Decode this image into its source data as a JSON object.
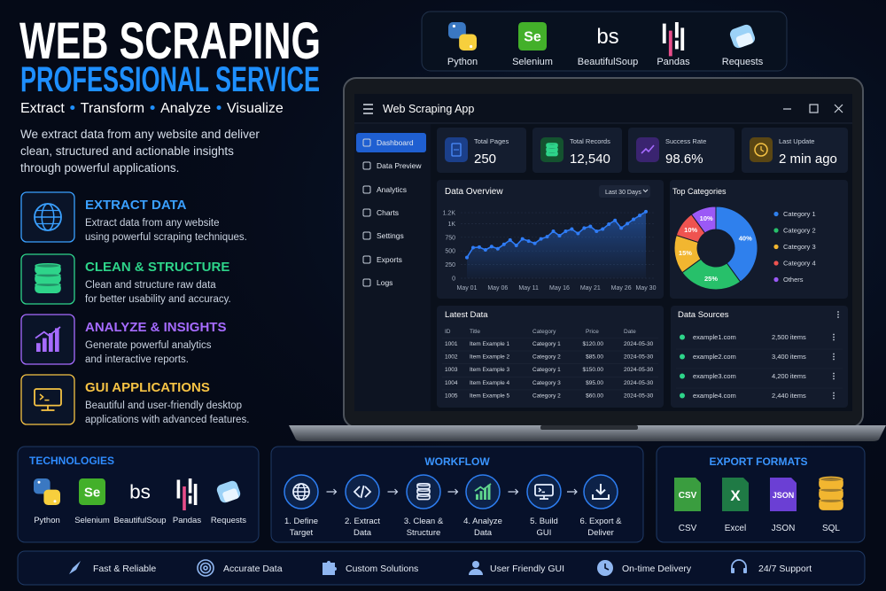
{
  "header": {
    "title": "WEB SCRAPING",
    "subtitle": "PROFESSIONAL SERVICE",
    "tagline": [
      "Extract",
      "Transform",
      "Analyze",
      "Visualize"
    ],
    "description": [
      "We extract data from any website and deliver",
      "clean, structured and actionable insights",
      "through powerful applications."
    ]
  },
  "services": [
    {
      "title": "EXTRACT DATA",
      "lines": [
        "Extract data from any website",
        "using powerful scraping techniques."
      ]
    },
    {
      "title": "CLEAN & STRUCTURE",
      "lines": [
        "Clean and structure raw data",
        "for better usability and accuracy."
      ]
    },
    {
      "title": "ANALYZE & INSIGHTS",
      "lines": [
        "Generate powerful analytics",
        "and interactive reports."
      ]
    },
    {
      "title": "GUI APPLICATIONS",
      "lines": [
        "Beautiful and user-friendly desktop",
        "applications with advanced features."
      ]
    }
  ],
  "top_tools": [
    {
      "name": "Python"
    },
    {
      "name": "Selenium",
      "icon_text": "Se"
    },
    {
      "name": "BeautifulSoup",
      "icon_text": "bs"
    },
    {
      "name": "Pandas"
    },
    {
      "name": "Requests"
    }
  ],
  "app": {
    "title": "Web Scraping App",
    "nav": [
      "Dashboard",
      "Data Preview",
      "Analytics",
      "Charts",
      "Settings",
      "Exports",
      "Logs"
    ],
    "stats": [
      {
        "label": "Total Pages",
        "value": "250"
      },
      {
        "label": "Total Records",
        "value": "12,540"
      },
      {
        "label": "Success Rate",
        "value": "98.6%"
      },
      {
        "label": "Last Update",
        "value": "2 min ago"
      }
    ],
    "overview": {
      "title": "Data Overview",
      "range": "Last 30 Days",
      "chart": {
        "type": "line",
        "color": "#2f7cf6",
        "grid": true,
        "categories": [
          "May 01",
          null,
          null,
          null,
          null,
          "May 06",
          null,
          null,
          null,
          null,
          "May 11",
          null,
          null,
          null,
          null,
          "May 16",
          null,
          null,
          null,
          null,
          "May 21",
          null,
          null,
          null,
          null,
          "May 26",
          null,
          null,
          null,
          "May 30"
        ],
        "values": [
          380,
          560,
          570,
          520,
          580,
          540,
          620,
          700,
          600,
          720,
          680,
          640,
          720,
          760,
          860,
          780,
          860,
          900,
          820,
          920,
          950,
          860,
          900,
          990,
          1060,
          920,
          1000,
          1080,
          1150,
          1220
        ],
        "ylim": [
          0,
          1250
        ],
        "yticks": [
          0,
          250,
          500,
          750,
          {
            "value": 1000,
            "label": "1K"
          },
          {
            "value": 1200,
            "label": "1.2K"
          }
        ]
      }
    },
    "top_categories": {
      "title": "Top Categories",
      "chart": {
        "type": "pie",
        "categories": [
          "Category 1",
          "Category 2",
          "Category 3",
          "Category 4",
          "Others"
        ],
        "values": [
          40,
          25,
          15,
          10,
          10
        ],
        "value_labels": [
          "40%",
          "25%",
          "15%",
          "10%",
          "10%"
        ],
        "colors": [
          "#2f80ed",
          "#27c06a",
          "#f2b630",
          "#ef5350",
          "#9b59f6"
        ]
      }
    },
    "latest": {
      "title": "Latest Data",
      "columns": [
        "ID",
        "Title",
        "Category",
        "Price",
        "Date"
      ],
      "rows": [
        [
          "1001",
          "Item Example 1",
          "Category 1",
          "$120.00",
          "2024-05-30"
        ],
        [
          "1002",
          "Item Example 2",
          "Category 2",
          "$85.00",
          "2024-05-30"
        ],
        [
          "1003",
          "Item Example 3",
          "Category 1",
          "$150.00",
          "2024-05-30"
        ],
        [
          "1004",
          "Item Example 4",
          "Category 3",
          "$95.00",
          "2024-05-30"
        ],
        [
          "1005",
          "Item Example 5",
          "Category 2",
          "$60.00",
          "2024-05-30"
        ]
      ]
    },
    "sources": {
      "title": "Data Sources",
      "rows": [
        [
          "example1.com",
          "2,500 items"
        ],
        [
          "example2.com",
          "3,400 items"
        ],
        [
          "example3.com",
          "4,200 items"
        ],
        [
          "example4.com",
          "2,440 items"
        ]
      ]
    }
  },
  "technologies": {
    "title": "TECHNOLOGIES",
    "items": [
      {
        "name": "Python"
      },
      {
        "name": "Selenium",
        "icon_text": "Se"
      },
      {
        "name": "BeautifulSoup",
        "icon_text": "bs"
      },
      {
        "name": "Pandas"
      },
      {
        "name": "Requests"
      }
    ]
  },
  "workflow": {
    "title": "WORKFLOW",
    "steps": [
      [
        "1. Define",
        "Target"
      ],
      [
        "2. Extract",
        "Data"
      ],
      [
        "3. Clean &",
        "Structure"
      ],
      [
        "4. Analyze",
        "Data"
      ],
      [
        "5. Build",
        "GUI"
      ],
      [
        "6. Export &",
        "Deliver"
      ]
    ]
  },
  "exports": {
    "title": "EXPORT FORMATS",
    "items": [
      {
        "name": "CSV",
        "icon_text": "CSV"
      },
      {
        "name": "Excel",
        "icon_text": "X"
      },
      {
        "name": "JSON",
        "icon_text": "JSON"
      },
      {
        "name": "SQL"
      }
    ]
  },
  "features": [
    "Fast & Reliable",
    "Accurate Data",
    "Custom Solutions",
    "User Friendly GUI",
    "On-time Delivery",
    "24/7 Support"
  ]
}
